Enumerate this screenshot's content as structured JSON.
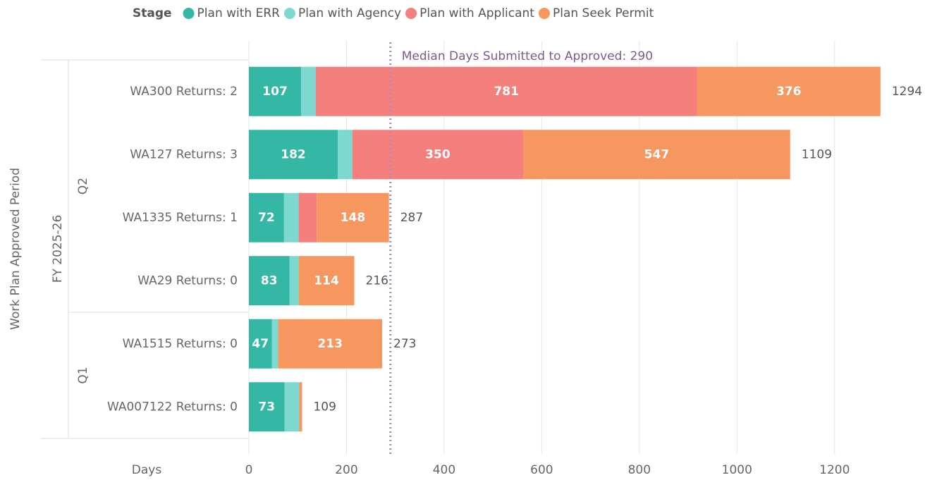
{
  "chart_data": {
    "type": "stacked-bar-horizontal",
    "legend_title": "Stage",
    "y_axis_label": "Work Plan Approved Period",
    "x_axis_label": "Days",
    "period": "FY 2025-26",
    "quarters": [
      "Q2",
      "Q2",
      "Q2",
      "Q2",
      "Q1",
      "Q1"
    ],
    "categories": [
      "WA300 Returns: 2",
      "WA127 Returns: 3",
      "WA1335 Returns: 1",
      "WA29 Returns: 0",
      "WA1515 Returns: 0",
      "WA007122 Returns: 0"
    ],
    "series": [
      {
        "name": "Plan with ERR",
        "color": "#35b7a6",
        "values": [
          107,
          182,
          72,
          83,
          47,
          73
        ]
      },
      {
        "name": "Plan with Agency",
        "color": "#7dd8cf",
        "values": [
          30,
          30,
          30,
          19,
          13,
          30
        ]
      },
      {
        "name": "Plan with Applicant",
        "color": "#f47f7c",
        "values": [
          781,
          350,
          37,
          null,
          null,
          null
        ]
      },
      {
        "name": "Plan Seek Permit",
        "color": "#f5975f",
        "values": [
          376,
          547,
          148,
          114,
          213,
          6
        ]
      }
    ],
    "totals": [
      1294,
      1109,
      287,
      216,
      273,
      109
    ],
    "reference_line": {
      "value": 290,
      "label": "Median Days Submitted to Approved: 290",
      "color": "#a98db4"
    },
    "xlim": [
      0,
      1300
    ],
    "xticks": [
      0,
      200,
      400,
      600,
      800,
      1000,
      1200
    ],
    "grid": true
  }
}
